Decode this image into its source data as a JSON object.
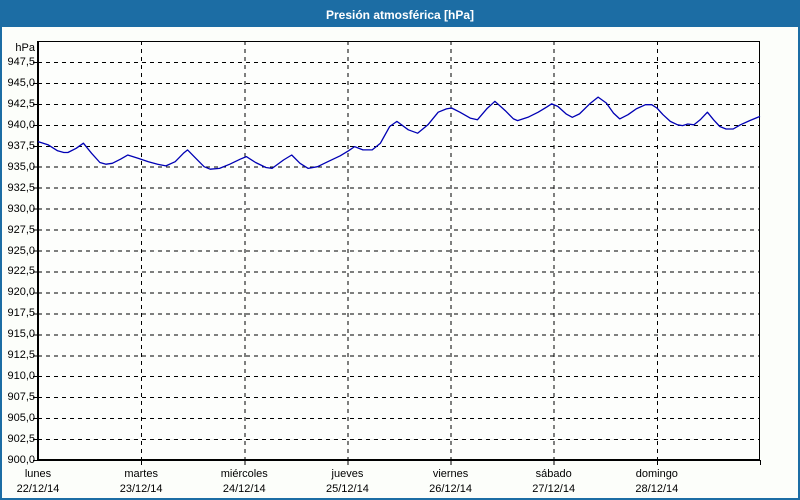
{
  "window": {
    "title": "Presión atmosférica [hPa]"
  },
  "colors": {
    "titlebar_bg": "#1C6DA4",
    "frame_border": "#1C6DA4",
    "title_text": "#FFFFFF",
    "plot_bg": "#FDFEFC",
    "grid": "#000000",
    "axis_text": "#000000",
    "line": "#0000B4"
  },
  "chart_data": {
    "type": "line",
    "title": "Presión atmosférica [hPa]",
    "y_unit_label": "hPa",
    "grid": "dashed",
    "legend_position": "none",
    "y_axis": {
      "min": 900,
      "max": 950,
      "gridline_step": 2.5,
      "tick_values": [
        947.5,
        945.0,
        942.5,
        940.0,
        937.5,
        935.0,
        932.5,
        930.0,
        927.5,
        925.0,
        922.5,
        920.0,
        917.5,
        915.0,
        912.5,
        910.0,
        907.5,
        905.0,
        902.5,
        900.0
      ],
      "tick_labels": [
        "947,5",
        "945,0",
        "942,5",
        "940,0",
        "937,5",
        "935,0",
        "932,5",
        "930,0",
        "927,5",
        "925,0",
        "922,5",
        "920,0",
        "917,5",
        "915,0",
        "912,5",
        "910,0",
        "907,5",
        "905,0",
        "902,5",
        "900,0"
      ]
    },
    "x_axis": {
      "min_day": 0,
      "max_day": 7,
      "days": [
        {
          "name": "lunes",
          "date": "22/12/14"
        },
        {
          "name": "martes",
          "date": "23/12/14"
        },
        {
          "name": "miércoles",
          "date": "24/12/14"
        },
        {
          "name": "jueves",
          "date": "25/12/14"
        },
        {
          "name": "viernes",
          "date": "26/12/14"
        },
        {
          "name": "sábado",
          "date": "27/12/14"
        },
        {
          "name": "domingo",
          "date": "28/12/14"
        }
      ]
    },
    "series": [
      {
        "name": "Presión atmosférica",
        "unit": "hPa",
        "x_days": [
          0.0,
          0.05,
          0.1,
          0.19,
          0.25,
          0.29,
          0.37,
          0.44,
          0.52,
          0.6,
          0.66,
          0.72,
          0.8,
          0.87,
          0.97,
          1.07,
          1.16,
          1.24,
          1.33,
          1.41,
          1.45,
          1.53,
          1.61,
          1.67,
          1.76,
          1.86,
          1.96,
          2.02,
          2.11,
          2.21,
          2.27,
          2.38,
          2.46,
          2.54,
          2.62,
          2.71,
          2.81,
          2.93,
          3.01,
          3.07,
          3.15,
          3.24,
          3.32,
          3.41,
          3.48,
          3.59,
          3.68,
          3.78,
          3.88,
          3.96,
          4.01,
          4.09,
          4.19,
          4.26,
          4.35,
          4.43,
          4.53,
          4.61,
          4.65,
          4.75,
          4.85,
          4.93,
          4.98,
          5.04,
          5.12,
          5.18,
          5.25,
          5.35,
          5.43,
          5.51,
          5.58,
          5.64,
          5.72,
          5.8,
          5.89,
          5.95,
          6.0,
          6.06,
          6.13,
          6.2,
          6.25,
          6.3,
          6.36,
          6.42,
          6.49,
          6.55,
          6.61,
          6.67,
          6.74,
          6.81,
          6.9,
          7.0
        ],
        "y_hpa": [
          938.0,
          937.8,
          937.6,
          936.9,
          936.7,
          936.7,
          937.2,
          937.8,
          936.6,
          935.5,
          935.3,
          935.4,
          935.9,
          936.4,
          936.0,
          935.6,
          935.3,
          935.1,
          935.6,
          936.6,
          937.0,
          936.0,
          935.0,
          934.7,
          934.8,
          935.3,
          935.9,
          936.2,
          935.5,
          934.9,
          934.8,
          935.8,
          936.4,
          935.4,
          934.8,
          935.0,
          935.6,
          936.3,
          936.9,
          937.4,
          937.0,
          937.0,
          937.8,
          939.8,
          940.4,
          939.4,
          939.0,
          940.0,
          941.5,
          941.9,
          942.0,
          941.5,
          940.8,
          940.6,
          941.9,
          942.8,
          941.7,
          940.7,
          940.5,
          940.9,
          941.5,
          942.1,
          942.5,
          942.2,
          941.3,
          940.9,
          941.3,
          942.5,
          943.3,
          942.6,
          941.4,
          940.7,
          941.2,
          941.9,
          942.4,
          942.4,
          942.0,
          941.2,
          940.4,
          940.0,
          939.9,
          940.1,
          940.0,
          940.6,
          941.5,
          940.6,
          939.8,
          939.5,
          939.5,
          940.0,
          940.5,
          941.0
        ]
      }
    ]
  }
}
